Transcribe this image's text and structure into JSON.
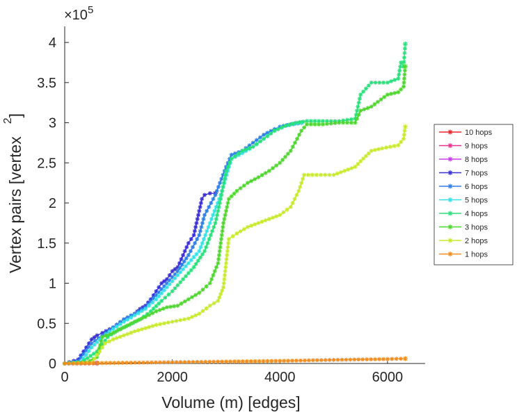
{
  "chart_data": {
    "type": "line",
    "title": "",
    "xlabel": "Volume (m) [edges]",
    "ylabel": "Vertex pairs [vertex",
    "ylabel_superscript": "2",
    "ylabel_close": "]",
    "exponent_base": "×10",
    "exponent_power": "5",
    "xlim": [
      0,
      6700
    ],
    "ylim": [
      0,
      420000
    ],
    "y_scale_factor": 100000,
    "xticks": [
      0,
      2000,
      4000,
      6000
    ],
    "xtick_labels": [
      "0",
      "2000",
      "4000",
      "6000"
    ],
    "yticks": [
      0,
      50000,
      100000,
      150000,
      200000,
      250000,
      300000,
      350000,
      400000
    ],
    "ytick_labels": [
      "0",
      "0.5",
      "1",
      "1.5",
      "2",
      "2.5",
      "3",
      "3.5",
      "4"
    ],
    "legend_position": "right-center",
    "marker": "asterisk",
    "series": [
      {
        "name": "10 hops",
        "color": "#e8232a",
        "x": [
          0,
          300,
          600
        ],
        "y": [
          0,
          200,
          400
        ]
      },
      {
        "name": "9 hops",
        "color": "#ec2f8f",
        "x": [
          0,
          300,
          600
        ],
        "y": [
          0,
          200,
          400
        ]
      },
      {
        "name": "8 hops",
        "color": "#c93bea",
        "x": [
          0,
          300,
          600
        ],
        "y": [
          0,
          200,
          400
        ]
      },
      {
        "name": "7 hops",
        "color": "#3a2fd6",
        "x": [
          0,
          250,
          400,
          500,
          600,
          700,
          900,
          1100,
          1300,
          1400,
          1500,
          1600,
          1700,
          1800,
          1900,
          2000,
          2100,
          2200,
          2300,
          2400,
          2500,
          2550,
          2600,
          2700,
          2800
        ],
        "y": [
          0,
          5000,
          20000,
          30000,
          35000,
          38000,
          45000,
          55000,
          62000,
          68000,
          72000,
          80000,
          90000,
          100000,
          105000,
          115000,
          120000,
          135000,
          150000,
          160000,
          190000,
          205000,
          210000,
          212000,
          212000
        ]
      },
      {
        "name": "6 hops",
        "color": "#2f7fe6",
        "x": [
          0,
          250,
          500,
          700,
          900,
          1100,
          1300,
          1500,
          1700,
          1900,
          2100,
          2300,
          2500,
          2600,
          2800,
          3000,
          3100,
          3300,
          3500,
          3700,
          3900,
          4000,
          4200,
          4400
        ],
        "y": [
          0,
          3000,
          25000,
          35000,
          45000,
          55000,
          62000,
          70000,
          85000,
          100000,
          115000,
          135000,
          160000,
          185000,
          210000,
          245000,
          260000,
          265000,
          275000,
          285000,
          292000,
          295000,
          298000,
          300000
        ]
      },
      {
        "name": "5 hops",
        "color": "#36e0e6",
        "x": [
          0,
          300,
          500,
          700,
          900,
          1100,
          1300,
          1500,
          1700,
          1900,
          2100,
          2300,
          2500,
          2700,
          2900,
          3100,
          3300,
          3500,
          3700,
          3900,
          4100,
          4400
        ],
        "y": [
          0,
          2000,
          20000,
          33000,
          43000,
          52000,
          60000,
          68000,
          80000,
          95000,
          110000,
          125000,
          140000,
          175000,
          210000,
          255000,
          262000,
          270000,
          280000,
          290000,
          296000,
          300000
        ]
      },
      {
        "name": "4 hops",
        "color": "#29e07a",
        "x": [
          0,
          300,
          600,
          800,
          1000,
          1200,
          1400,
          1600,
          1800,
          2000,
          2200,
          2400,
          2600,
          2800,
          2900,
          3000,
          3100,
          3300,
          3500,
          3700,
          3900,
          4100,
          4300,
          4500,
          4800,
          5100,
          5400,
          5500,
          5700,
          6000,
          6200,
          6250,
          6300,
          6330
        ],
        "y": [
          0,
          1000,
          15000,
          33000,
          42000,
          48000,
          55000,
          65000,
          78000,
          90000,
          105000,
          120000,
          140000,
          175000,
          205000,
          240000,
          255000,
          265000,
          270000,
          280000,
          290000,
          296000,
          300000,
          302000,
          302000,
          302000,
          305000,
          335000,
          350000,
          350000,
          355000,
          375000,
          370000,
          398000
        ]
      },
      {
        "name": "3 hops",
        "color": "#4fd62f",
        "x": [
          0,
          400,
          600,
          700,
          900,
          1100,
          1300,
          1500,
          1700,
          1900,
          2100,
          2300,
          2500,
          2700,
          2850,
          2950,
          3050,
          3200,
          3400,
          3600,
          3800,
          4000,
          4200,
          4400,
          4500,
          4800,
          5100,
          5400,
          5500,
          5700,
          6000,
          6200,
          6300,
          6330
        ],
        "y": [
          0,
          1000,
          8000,
          33000,
          38000,
          45000,
          52000,
          58000,
          65000,
          70000,
          72000,
          80000,
          88000,
          100000,
          125000,
          175000,
          205000,
          215000,
          225000,
          232000,
          240000,
          250000,
          265000,
          290000,
          298000,
          298000,
          300000,
          300000,
          315000,
          320000,
          335000,
          338000,
          345000,
          370000
        ]
      },
      {
        "name": "2 hops",
        "color": "#c8ea2e",
        "x": [
          0,
          500,
          650,
          750,
          900,
          1100,
          1300,
          1500,
          1700,
          2000,
          2300,
          2500,
          2700,
          2850,
          2950,
          3050,
          3200,
          3400,
          3600,
          3800,
          4000,
          4200,
          4350,
          4450,
          4600,
          5000,
          5400,
          5500,
          5700,
          5900,
          6200,
          6300,
          6330
        ],
        "y": [
          0,
          1000,
          15000,
          25000,
          30000,
          35000,
          40000,
          44000,
          48000,
          52000,
          56000,
          62000,
          72000,
          78000,
          95000,
          155000,
          162000,
          170000,
          175000,
          180000,
          185000,
          195000,
          215000,
          235000,
          235000,
          235000,
          245000,
          252000,
          265000,
          268000,
          272000,
          280000,
          295000
        ]
      },
      {
        "name": "1 hops",
        "color": "#f28c1c",
        "x": [
          0,
          1000,
          2000,
          3000,
          4000,
          5000,
          6000,
          6330
        ],
        "y": [
          0,
          800,
          1600,
          2400,
          3200,
          4500,
          5500,
          6000
        ]
      }
    ]
  }
}
